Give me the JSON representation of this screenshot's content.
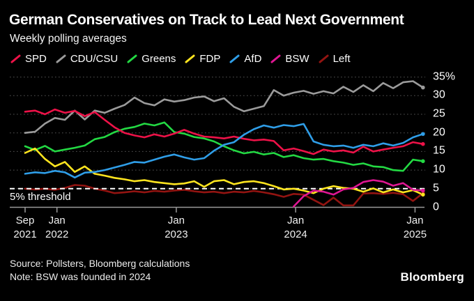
{
  "header": {
    "title": "German Conservatives on Track to Lead Next Government",
    "subtitle": "Weekly polling averages"
  },
  "chart_data": {
    "type": "line",
    "title": "German Conservatives on Track to Lead Next Government",
    "subtitle": "Weekly polling averages",
    "x_unit": "months since late Sep 2021 (weekly polling averages, sampled monthly)",
    "ylim": [
      0,
      35
    ],
    "grid": "dotted horizontal gridlines",
    "legend_position": "top",
    "y_ticks": [
      {
        "value": 35,
        "label": "35%"
      },
      {
        "value": 30,
        "label": "30"
      },
      {
        "value": 25,
        "label": "25"
      },
      {
        "value": 20,
        "label": "20"
      },
      {
        "value": 15,
        "label": "15"
      },
      {
        "value": 10,
        "label": "10"
      },
      {
        "value": 5,
        "label": "5"
      },
      {
        "value": 0,
        "label": "0"
      }
    ],
    "x_ticks": [
      {
        "pos": 0,
        "line1": "Sep",
        "line2": "2021"
      },
      {
        "pos": 3.2,
        "line1": "Jan",
        "line2": "2022"
      },
      {
        "pos": 15.2,
        "line1": "Jan",
        "line2": "2023"
      },
      {
        "pos": 27.2,
        "line1": "Jan",
        "line2": "2024"
      },
      {
        "pos": 39.2,
        "line1": "Jan",
        "line2": "2025"
      }
    ],
    "threshold": {
      "value": 5,
      "label": "5% threshold",
      "color": "#ffffff",
      "draw_after_series": "Left"
    },
    "legend_order": [
      "SPD",
      "CDU/CSU",
      "Greens",
      "FDP",
      "AfD",
      "BSW",
      "Left"
    ],
    "draw_order": [
      "Left",
      "CDU/CSU",
      "Greens",
      "SPD",
      "FDP",
      "AfD",
      "BSW"
    ],
    "series": [
      {
        "name": "SPD",
        "color": "#ed1248",
        "x_start": 0,
        "values": [
          25.7,
          26.0,
          25.0,
          26.3,
          25.4,
          25.9,
          24.5,
          25.6,
          23.5,
          21.5,
          20.0,
          19.3,
          18.8,
          19.6,
          19.0,
          19.8,
          20.8,
          19.8,
          19.0,
          18.8,
          18.5,
          19.0,
          18.4,
          18.0,
          18.2,
          17.8,
          15.3,
          15.8,
          15.1,
          14.3,
          15.5,
          15.0,
          15.3,
          14.7,
          16.3,
          15.0,
          15.5,
          16.0,
          16.4,
          17.5,
          17.0
        ]
      },
      {
        "name": "CDU/CSU",
        "color": "#9b9b9b",
        "x_start": 0,
        "values": [
          20.0,
          20.3,
          22.5,
          24.0,
          23.5,
          26.0,
          23.6,
          26.0,
          25.4,
          26.5,
          27.5,
          29.5,
          28.0,
          27.4,
          29.0,
          28.4,
          28.8,
          29.5,
          29.8,
          28.5,
          29.3,
          27.0,
          25.8,
          26.5,
          27.2,
          31.5,
          30.0,
          30.8,
          31.3,
          30.5,
          31.2,
          30.6,
          32.4,
          31.0,
          32.8,
          31.2,
          33.4,
          32.0,
          33.6,
          33.9,
          32.2
        ]
      },
      {
        "name": "Greens",
        "color": "#23d943",
        "x_start": 0,
        "values": [
          16.4,
          15.4,
          16.5,
          15.0,
          15.5,
          16.0,
          16.6,
          18.3,
          18.9,
          20.2,
          21.1,
          21.6,
          22.5,
          22.0,
          22.8,
          20.2,
          19.8,
          18.9,
          18.5,
          17.7,
          16.4,
          15.3,
          14.5,
          14.9,
          14.2,
          14.6,
          13.5,
          14.0,
          13.2,
          12.8,
          13.0,
          12.4,
          12.0,
          11.4,
          11.8,
          11.0,
          10.8,
          10.0,
          9.8,
          12.8,
          12.4
        ]
      },
      {
        "name": "FDP",
        "color": "#ffe51f",
        "x_start": 0,
        "values": [
          14.6,
          15.8,
          13.0,
          11.0,
          12.2,
          9.5,
          11.0,
          9.0,
          8.5,
          7.9,
          7.5,
          7.0,
          7.3,
          6.8,
          6.5,
          6.2,
          6.4,
          7.0,
          5.5,
          7.0,
          7.3,
          6.2,
          6.8,
          7.0,
          6.5,
          5.7,
          4.8,
          5.0,
          4.5,
          3.8,
          5.0,
          5.7,
          5.2,
          5.0,
          4.2,
          5.1,
          4.0,
          4.8,
          4.0,
          4.6,
          3.4
        ]
      },
      {
        "name": "AfD",
        "color": "#2f9ee8",
        "x_start": 0,
        "values": [
          9.0,
          9.4,
          9.2,
          9.8,
          9.4,
          8.0,
          9.3,
          9.5,
          10.0,
          10.7,
          11.4,
          12.2,
          12.0,
          12.8,
          13.6,
          14.2,
          13.4,
          12.8,
          13.2,
          15.2,
          16.8,
          17.5,
          19.5,
          21.0,
          22.0,
          21.4,
          22.1,
          21.8,
          22.4,
          17.7,
          16.8,
          16.4,
          16.6,
          16.0,
          16.8,
          16.4,
          17.2,
          16.6,
          17.3,
          18.8,
          19.7
        ]
      },
      {
        "name": "BSW",
        "color": "#e01693",
        "x_start": 27,
        "values": [
          0.2,
          3.0,
          4.5,
          4.2,
          3.4,
          4.8,
          5.2,
          6.8,
          7.3,
          6.9,
          5.8,
          6.5,
          4.7,
          4.5
        ]
      },
      {
        "name": "Left",
        "color": "#931411",
        "x_start": 0,
        "values": [
          5.0,
          4.8,
          5.0,
          4.7,
          5.2,
          6.0,
          5.8,
          5.0,
          4.5,
          3.8,
          4.0,
          4.3,
          4.0,
          4.4,
          4.2,
          4.5,
          4.7,
          4.3,
          4.0,
          4.2,
          3.8,
          4.2,
          4.0,
          4.4,
          4.0,
          3.5,
          2.8,
          3.6,
          3.4,
          2.0,
          0.6,
          2.6,
          0.5,
          0.5,
          3.7,
          3.8,
          3.6,
          3.9,
          3.5,
          1.7,
          3.8
        ]
      }
    ]
  },
  "footer": {
    "source": "Source: Pollsters, Bloomberg calculations",
    "note": "Note: BSW was founded in 2024",
    "logo": "Bloomberg"
  },
  "colors": {
    "background": "#000000",
    "gridline": "#555555",
    "axis": "#9a9a9a",
    "threshold": "#ffffff",
    "text": "#ffffff"
  }
}
